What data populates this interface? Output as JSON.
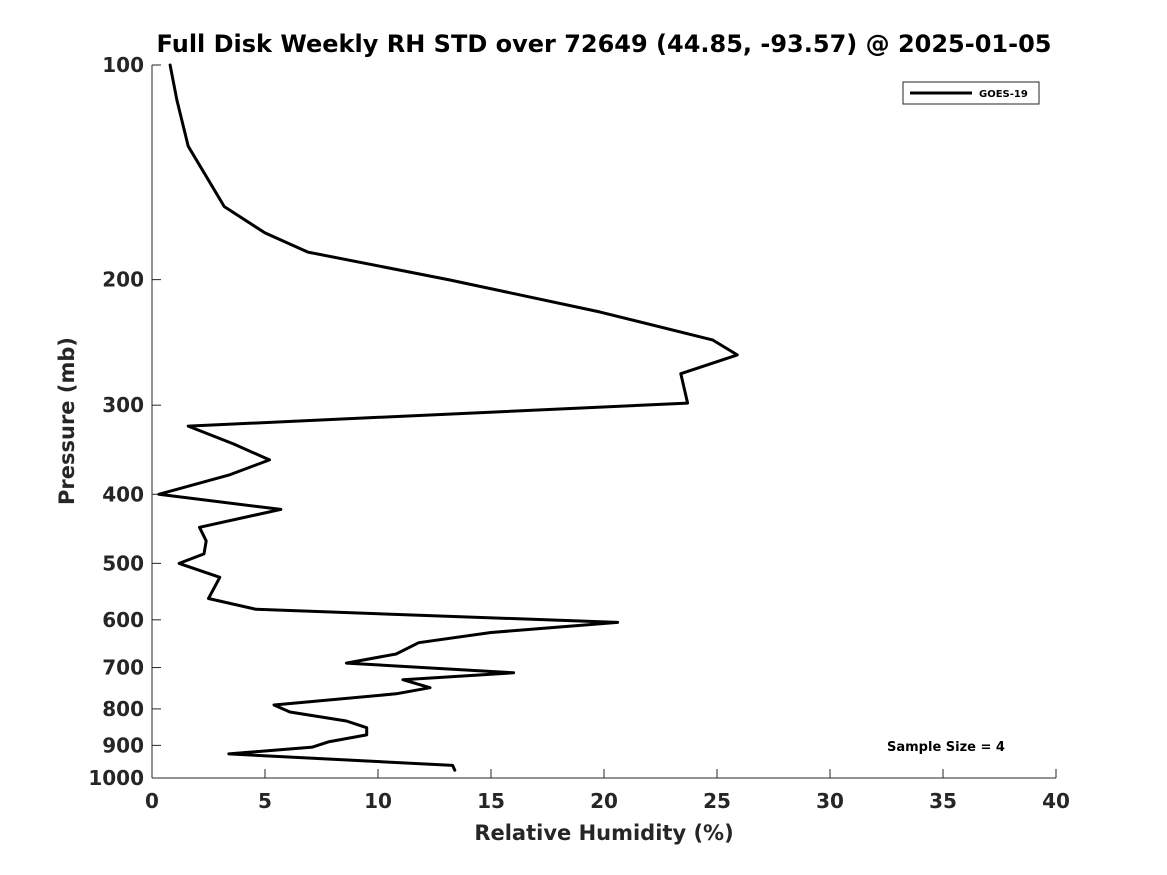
{
  "chart_data": {
    "type": "line",
    "title": "Full Disk Weekly RH STD over 72649 (44.85, -93.57) @ 2025-01-05",
    "xlabel": "Relative Humidity (%)",
    "ylabel": "Pressure (mb)",
    "xlim": [
      0,
      40
    ],
    "ylim": [
      100,
      1000
    ],
    "y_scale": "log",
    "y_reversed": true,
    "x_ticks": [
      "0",
      "5",
      "10",
      "15",
      "20",
      "25",
      "30",
      "35",
      "40"
    ],
    "y_ticks": [
      "100",
      "200",
      "300",
      "400",
      "500",
      "600",
      "700",
      "800",
      "900",
      "1000"
    ],
    "grid": false,
    "legend": {
      "position": "top-right",
      "entries": [
        "GOES-19"
      ]
    },
    "annotation": "Sample Size = 4",
    "series": [
      {
        "name": "GOES-19",
        "color": "#000000",
        "x": [
          0.8,
          1.1,
          1.6,
          3.2,
          5.0,
          6.9,
          13.1,
          19.8,
          24.8,
          25.9,
          23.4,
          23.7,
          1.6,
          3.6,
          5.2,
          3.4,
          0.3,
          5.7,
          2.1,
          2.4,
          2.3,
          1.2,
          3.0,
          2.5,
          4.6,
          20.6,
          15.0,
          11.8,
          10.8,
          8.6,
          16.0,
          11.1,
          12.3,
          10.8,
          5.4,
          6.1,
          8.6,
          9.5,
          9.5,
          7.8,
          7.1,
          3.4,
          13.3,
          13.4
        ],
        "y": [
          100,
          112,
          130,
          158,
          172,
          183,
          200,
          222,
          243,
          255,
          271,
          298,
          321,
          340,
          358,
          376,
          400,
          420,
          445,
          465,
          485,
          500,
          523,
          560,
          580,
          605,
          625,
          646,
          670,
          690,
          712,
          728,
          747,
          762,
          790,
          808,
          832,
          850,
          870,
          890,
          905,
          925,
          960,
          975
        ]
      }
    ]
  }
}
